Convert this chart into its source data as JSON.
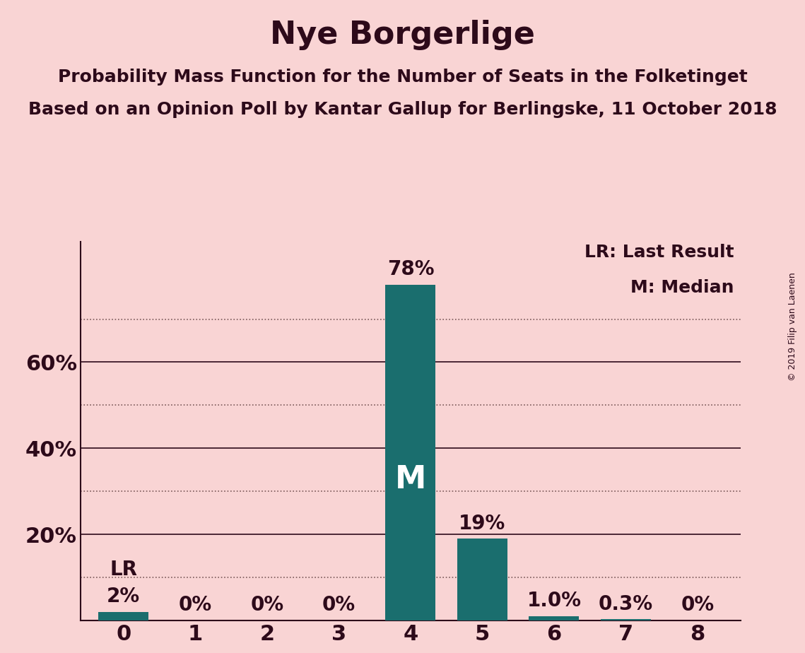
{
  "title": "Nye Borgerlige",
  "subtitle1": "Probability Mass Function for the Number of Seats in the Folketinget",
  "subtitle2": "Based on an Opinion Poll by Kantar Gallup for Berlingske, 11 October 2018",
  "copyright": "© 2019 Filip van Laenen",
  "categories": [
    0,
    1,
    2,
    3,
    4,
    5,
    6,
    7,
    8
  ],
  "values": [
    0.02,
    0.0,
    0.0,
    0.0,
    0.78,
    0.19,
    0.01,
    0.003,
    0.0
  ],
  "bar_labels": [
    "2%",
    "0%",
    "0%",
    "0%",
    "78%",
    "19%",
    "1.0%",
    "0.3%",
    "0%"
  ],
  "bar_color": "#1a6e6e",
  "background_color": "#f9d4d4",
  "text_color": "#2d0a1a",
  "title_fontsize": 32,
  "subtitle_fontsize": 18,
  "label_fontsize": 20,
  "tick_fontsize": 22,
  "ytick_major_values": [
    0.2,
    0.4,
    0.6
  ],
  "ytick_major_labels": [
    "20%",
    "40%",
    "60%"
  ],
  "ytick_minor_values": [
    0.1,
    0.3,
    0.5,
    0.7
  ],
  "ylim": [
    0,
    0.88
  ],
  "lr_bar_index": 0,
  "median_bar_index": 4,
  "legend_lr": "LR: Last Result",
  "legend_m": "M: Median",
  "grid_solid_color": "#2d0a1a",
  "grid_dotted_color": "#5a3a3a"
}
